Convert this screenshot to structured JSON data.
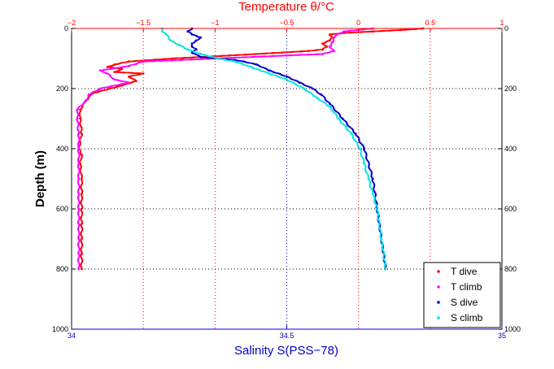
{
  "chart_data": {
    "type": "scatter",
    "title": "",
    "top_xlabel": "Temperature θ/°C",
    "bottom_xlabel": "Salinity S(PSS−78)",
    "ylabel": "Depth (m)",
    "top_xlim": [
      -2,
      1
    ],
    "top_xticks": [
      -2,
      -1.5,
      -1,
      -0.5,
      0,
      0.5,
      1
    ],
    "top_xtick_labels": [
      "−2",
      "−1.5",
      "−1",
      "−0.5",
      "0",
      "0.5",
      "1"
    ],
    "bottom_xlim": [
      34,
      35
    ],
    "bottom_xticks": [
      34,
      34.5,
      35
    ],
    "bottom_xtick_labels": [
      "34",
      "34.5",
      "35"
    ],
    "ylim": [
      0,
      1000
    ],
    "yreversed": true,
    "yticks": [
      0,
      200,
      400,
      600,
      800,
      1000
    ],
    "ytick_labels": [
      "0",
      "200",
      "400",
      "600",
      "800",
      "1000"
    ],
    "grid": true,
    "legend_position": "lower-right",
    "colors": {
      "temperature_axis": "#ff0000",
      "salinity_axis": "#0000cc",
      "t_dive": "#ff0000",
      "t_climb": "#ff00ff",
      "s_dive": "#0000cc",
      "s_climb": "#00e5e5"
    },
    "series": [
      {
        "name": "T dive",
        "axis": "temperature",
        "color": "#ff0000",
        "points": [
          [
            0.45,
            0
          ],
          [
            0.4,
            2
          ],
          [
            0.3,
            5
          ],
          [
            0.1,
            10
          ],
          [
            -0.1,
            15
          ],
          [
            -0.2,
            20
          ],
          [
            -0.18,
            30
          ],
          [
            -0.2,
            40
          ],
          [
            -0.25,
            50
          ],
          [
            -0.22,
            60
          ],
          [
            -0.25,
            70
          ],
          [
            -0.35,
            75
          ],
          [
            -0.6,
            82
          ],
          [
            -0.9,
            90
          ],
          [
            -1.3,
            100
          ],
          [
            -1.6,
            110
          ],
          [
            -1.7,
            120
          ],
          [
            -1.75,
            128
          ],
          [
            -1.65,
            135
          ],
          [
            -1.7,
            145
          ],
          [
            -1.5,
            150
          ],
          [
            -1.6,
            160
          ],
          [
            -1.55,
            175
          ],
          [
            -1.65,
            190
          ],
          [
            -1.85,
            215
          ],
          [
            -1.9,
            240
          ],
          [
            -1.94,
            270
          ],
          [
            -1.94,
            300
          ],
          [
            -1.93,
            350
          ],
          [
            -1.95,
            400
          ],
          [
            -1.93,
            420
          ],
          [
            -1.94,
            450
          ],
          [
            -1.93,
            500
          ],
          [
            -1.93,
            550
          ],
          [
            -1.93,
            600
          ],
          [
            -1.93,
            650
          ],
          [
            -1.93,
            700
          ],
          [
            -1.93,
            750
          ],
          [
            -1.93,
            800
          ]
        ]
      },
      {
        "name": "T climb",
        "axis": "temperature",
        "color": "#ff00ff",
        "points": [
          [
            0.1,
            0
          ],
          [
            0.0,
            5
          ],
          [
            -0.1,
            10
          ],
          [
            -0.15,
            20
          ],
          [
            -0.17,
            30
          ],
          [
            -0.18,
            45
          ],
          [
            -0.2,
            60
          ],
          [
            -0.17,
            75
          ],
          [
            -0.25,
            85
          ],
          [
            -0.5,
            90
          ],
          [
            -1.0,
            100
          ],
          [
            -1.5,
            110
          ],
          [
            -1.6,
            125
          ],
          [
            -1.8,
            140
          ],
          [
            -1.75,
            150
          ],
          [
            -1.7,
            170
          ],
          [
            -1.6,
            180
          ],
          [
            -1.8,
            200
          ],
          [
            -1.88,
            220
          ],
          [
            -1.9,
            240
          ],
          [
            -1.96,
            270
          ],
          [
            -1.96,
            300
          ],
          [
            -1.95,
            350
          ],
          [
            -1.95,
            400
          ],
          [
            -1.95,
            450
          ],
          [
            -1.95,
            500
          ],
          [
            -1.95,
            550
          ],
          [
            -1.95,
            600
          ],
          [
            -1.95,
            650
          ],
          [
            -1.95,
            700
          ],
          [
            -1.95,
            750
          ],
          [
            -1.95,
            800
          ]
        ]
      },
      {
        "name": "S dive",
        "axis": "salinity",
        "color": "#0000cc",
        "points": [
          [
            34.28,
            0
          ],
          [
            34.27,
            10
          ],
          [
            34.28,
            20
          ],
          [
            34.3,
            30
          ],
          [
            34.29,
            40
          ],
          [
            34.28,
            50
          ],
          [
            34.28,
            60
          ],
          [
            34.29,
            70
          ],
          [
            34.28,
            80
          ],
          [
            34.3,
            95
          ],
          [
            34.34,
            100
          ],
          [
            34.38,
            105
          ],
          [
            34.4,
            110
          ],
          [
            34.43,
            120
          ],
          [
            34.46,
            140
          ],
          [
            34.5,
            160
          ],
          [
            34.53,
            180
          ],
          [
            34.56,
            200
          ],
          [
            34.58,
            220
          ],
          [
            34.6,
            250
          ],
          [
            34.63,
            300
          ],
          [
            34.66,
            350
          ],
          [
            34.68,
            400
          ],
          [
            34.7,
            500
          ],
          [
            34.71,
            600
          ],
          [
            34.72,
            700
          ],
          [
            34.73,
            800
          ]
        ]
      },
      {
        "name": "S climb",
        "axis": "salinity",
        "color": "#00e5e5",
        "points": [
          [
            34.21,
            0
          ],
          [
            34.21,
            10
          ],
          [
            34.22,
            20
          ],
          [
            34.23,
            40
          ],
          [
            34.25,
            55
          ],
          [
            34.27,
            70
          ],
          [
            34.3,
            85
          ],
          [
            34.34,
            100
          ],
          [
            34.38,
            110
          ],
          [
            34.42,
            130
          ],
          [
            34.46,
            150
          ],
          [
            34.5,
            170
          ],
          [
            34.54,
            200
          ],
          [
            34.57,
            230
          ],
          [
            34.6,
            260
          ],
          [
            34.62,
            300
          ],
          [
            34.65,
            350
          ],
          [
            34.67,
            400
          ],
          [
            34.68,
            450
          ],
          [
            34.69,
            500
          ],
          [
            34.7,
            550
          ],
          [
            34.71,
            600
          ],
          [
            34.72,
            700
          ],
          [
            34.73,
            800
          ]
        ]
      }
    ]
  }
}
